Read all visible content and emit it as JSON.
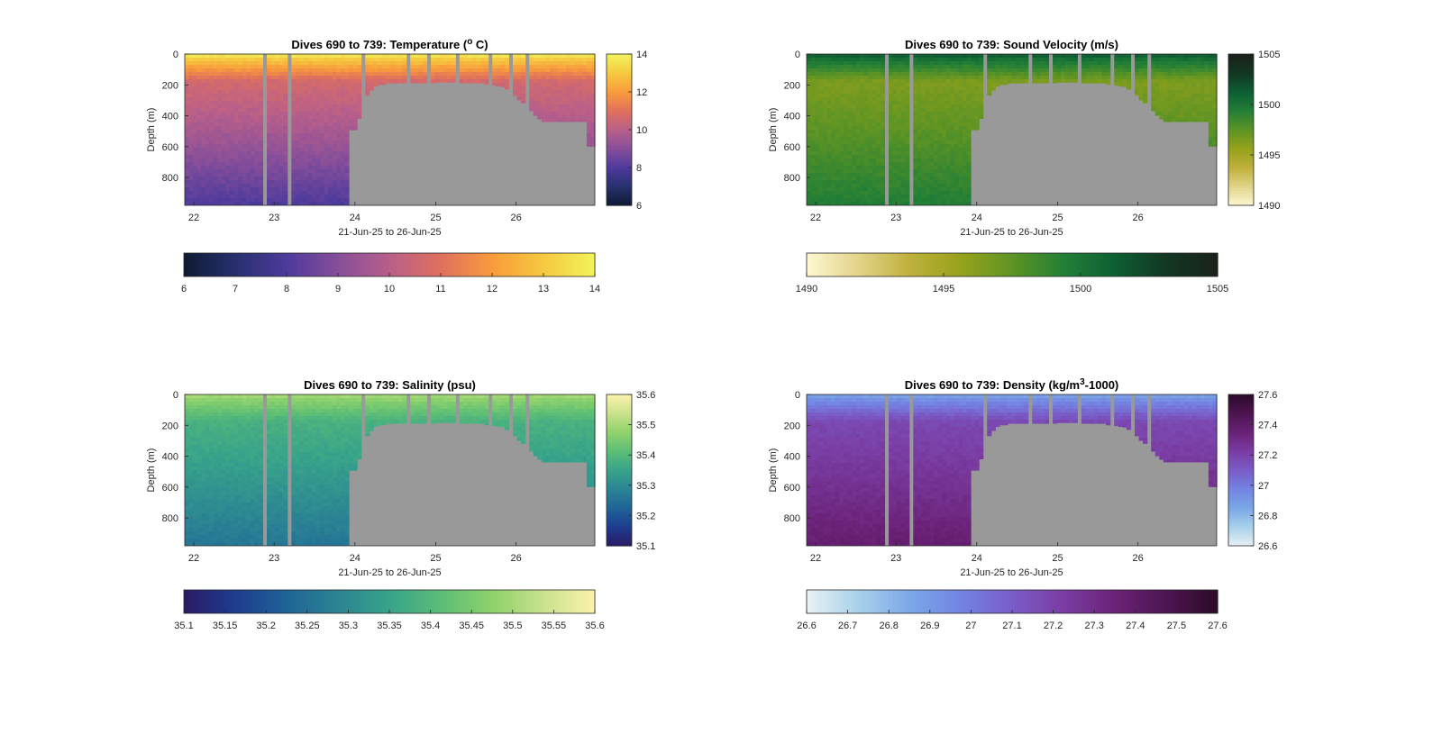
{
  "chart_data": [
    {
      "type": "heatmap",
      "title": "Dives 690 to 739: Temperature (",
      "title_sup": "o",
      "title_end": " C)",
      "xlabel": "21-Jun-25 to 26-Jun-25",
      "ylabel": "Depth (m)",
      "x_ticks": [
        "22",
        "23",
        "24",
        "25",
        "26"
      ],
      "y_ticks": [
        "0",
        "200",
        "400",
        "600",
        "800"
      ],
      "colorbar_ticks": [
        "6",
        "8",
        "10",
        "12",
        "14"
      ],
      "horizontal_colorbar_ticks": [
        "6",
        "7",
        "8",
        "9",
        "10",
        "11",
        "12",
        "13",
        "14"
      ],
      "clim": [
        6,
        14
      ],
      "surface_value": 13.2,
      "mid_value": 10.6,
      "deep_value": 8.0,
      "colormap": [
        "#0d1a33",
        "#27306e",
        "#4d3a9c",
        "#864e9a",
        "#b85f8a",
        "#e0705d",
        "#f89b3c",
        "#f6c840",
        "#f1f45c"
      ]
    },
    {
      "type": "heatmap",
      "title": "Dives 690 to 739: Sound Velocity (m/s)",
      "xlabel": "21-Jun-25 to 26-Jun-25",
      "ylabel": "Depth (m)",
      "x_ticks": [
        "22",
        "23",
        "24",
        "25",
        "26"
      ],
      "y_ticks": [
        "0",
        "200",
        "400",
        "600",
        "800"
      ],
      "colorbar_ticks": [
        "1490",
        "1495",
        "1500",
        "1505"
      ],
      "horizontal_colorbar_ticks": [
        "1490",
        "1495",
        "1500",
        "1505"
      ],
      "clim": [
        1490,
        1505
      ],
      "surface_value": 1500.5,
      "mid_value": 1496.5,
      "deep_value": 1499.5,
      "colormap": [
        "#fdf8d2",
        "#e2d48a",
        "#c0b03c",
        "#97a21b",
        "#5e9424",
        "#237f36",
        "#0d5f34",
        "#123722",
        "#1b211b"
      ]
    },
    {
      "type": "heatmap",
      "title": "Dives 690 to 739: Salinity (psu)",
      "xlabel": "21-Jun-25 to 26-Jun-25",
      "ylabel": "Depth (m)",
      "x_ticks": [
        "22",
        "23",
        "24",
        "25",
        "26"
      ],
      "y_ticks": [
        "0",
        "200",
        "400",
        "600",
        "800"
      ],
      "colorbar_ticks": [
        "35.1",
        "35.2",
        "35.3",
        "35.4",
        "35.5",
        "35.6"
      ],
      "horizontal_colorbar_ticks": [
        "35.1",
        "35.15",
        "35.2",
        "35.25",
        "35.3",
        "35.35",
        "35.4",
        "35.45",
        "35.5",
        "35.55",
        "35.6"
      ],
      "clim": [
        35.1,
        35.6
      ],
      "surface_value": 35.48,
      "mid_value": 35.38,
      "deep_value": 35.26,
      "colormap": [
        "#2a1a63",
        "#1e3c8f",
        "#1f6397",
        "#2b8493",
        "#38a38a",
        "#5bbd76",
        "#8ed26c",
        "#c9e18b",
        "#fbf3ad"
      ]
    },
    {
      "type": "heatmap",
      "title": "Dives 690 to 739: Density (kg/m",
      "title_sup": "3",
      "title_end": "-1000)",
      "xlabel": "21-Jun-25 to 26-Jun-25",
      "ylabel": "Depth (m)",
      "x_ticks": [
        "22",
        "23",
        "24",
        "25",
        "26"
      ],
      "y_ticks": [
        "0",
        "200",
        "400",
        "600",
        "800"
      ],
      "colorbar_ticks": [
        "26.6",
        "26.8",
        "27",
        "27.2",
        "27.4",
        "27.6"
      ],
      "horizontal_colorbar_ticks": [
        "26.6",
        "26.7",
        "26.8",
        "26.9",
        "27",
        "27.1",
        "27.2",
        "27.3",
        "27.4",
        "27.5",
        "27.6"
      ],
      "clim": [
        26.6,
        27.6
      ],
      "surface_value": 26.92,
      "mid_value": 27.18,
      "deep_value": 27.38,
      "colormap": [
        "#e9f2f5",
        "#a8d1eb",
        "#7ba8e8",
        "#7384e2",
        "#7a5cc8",
        "#7a3da3",
        "#6b2278",
        "#4c1550",
        "#2d0a2a"
      ]
    }
  ],
  "colors": {
    "nodata": "#999999",
    "axis": "#262626"
  }
}
